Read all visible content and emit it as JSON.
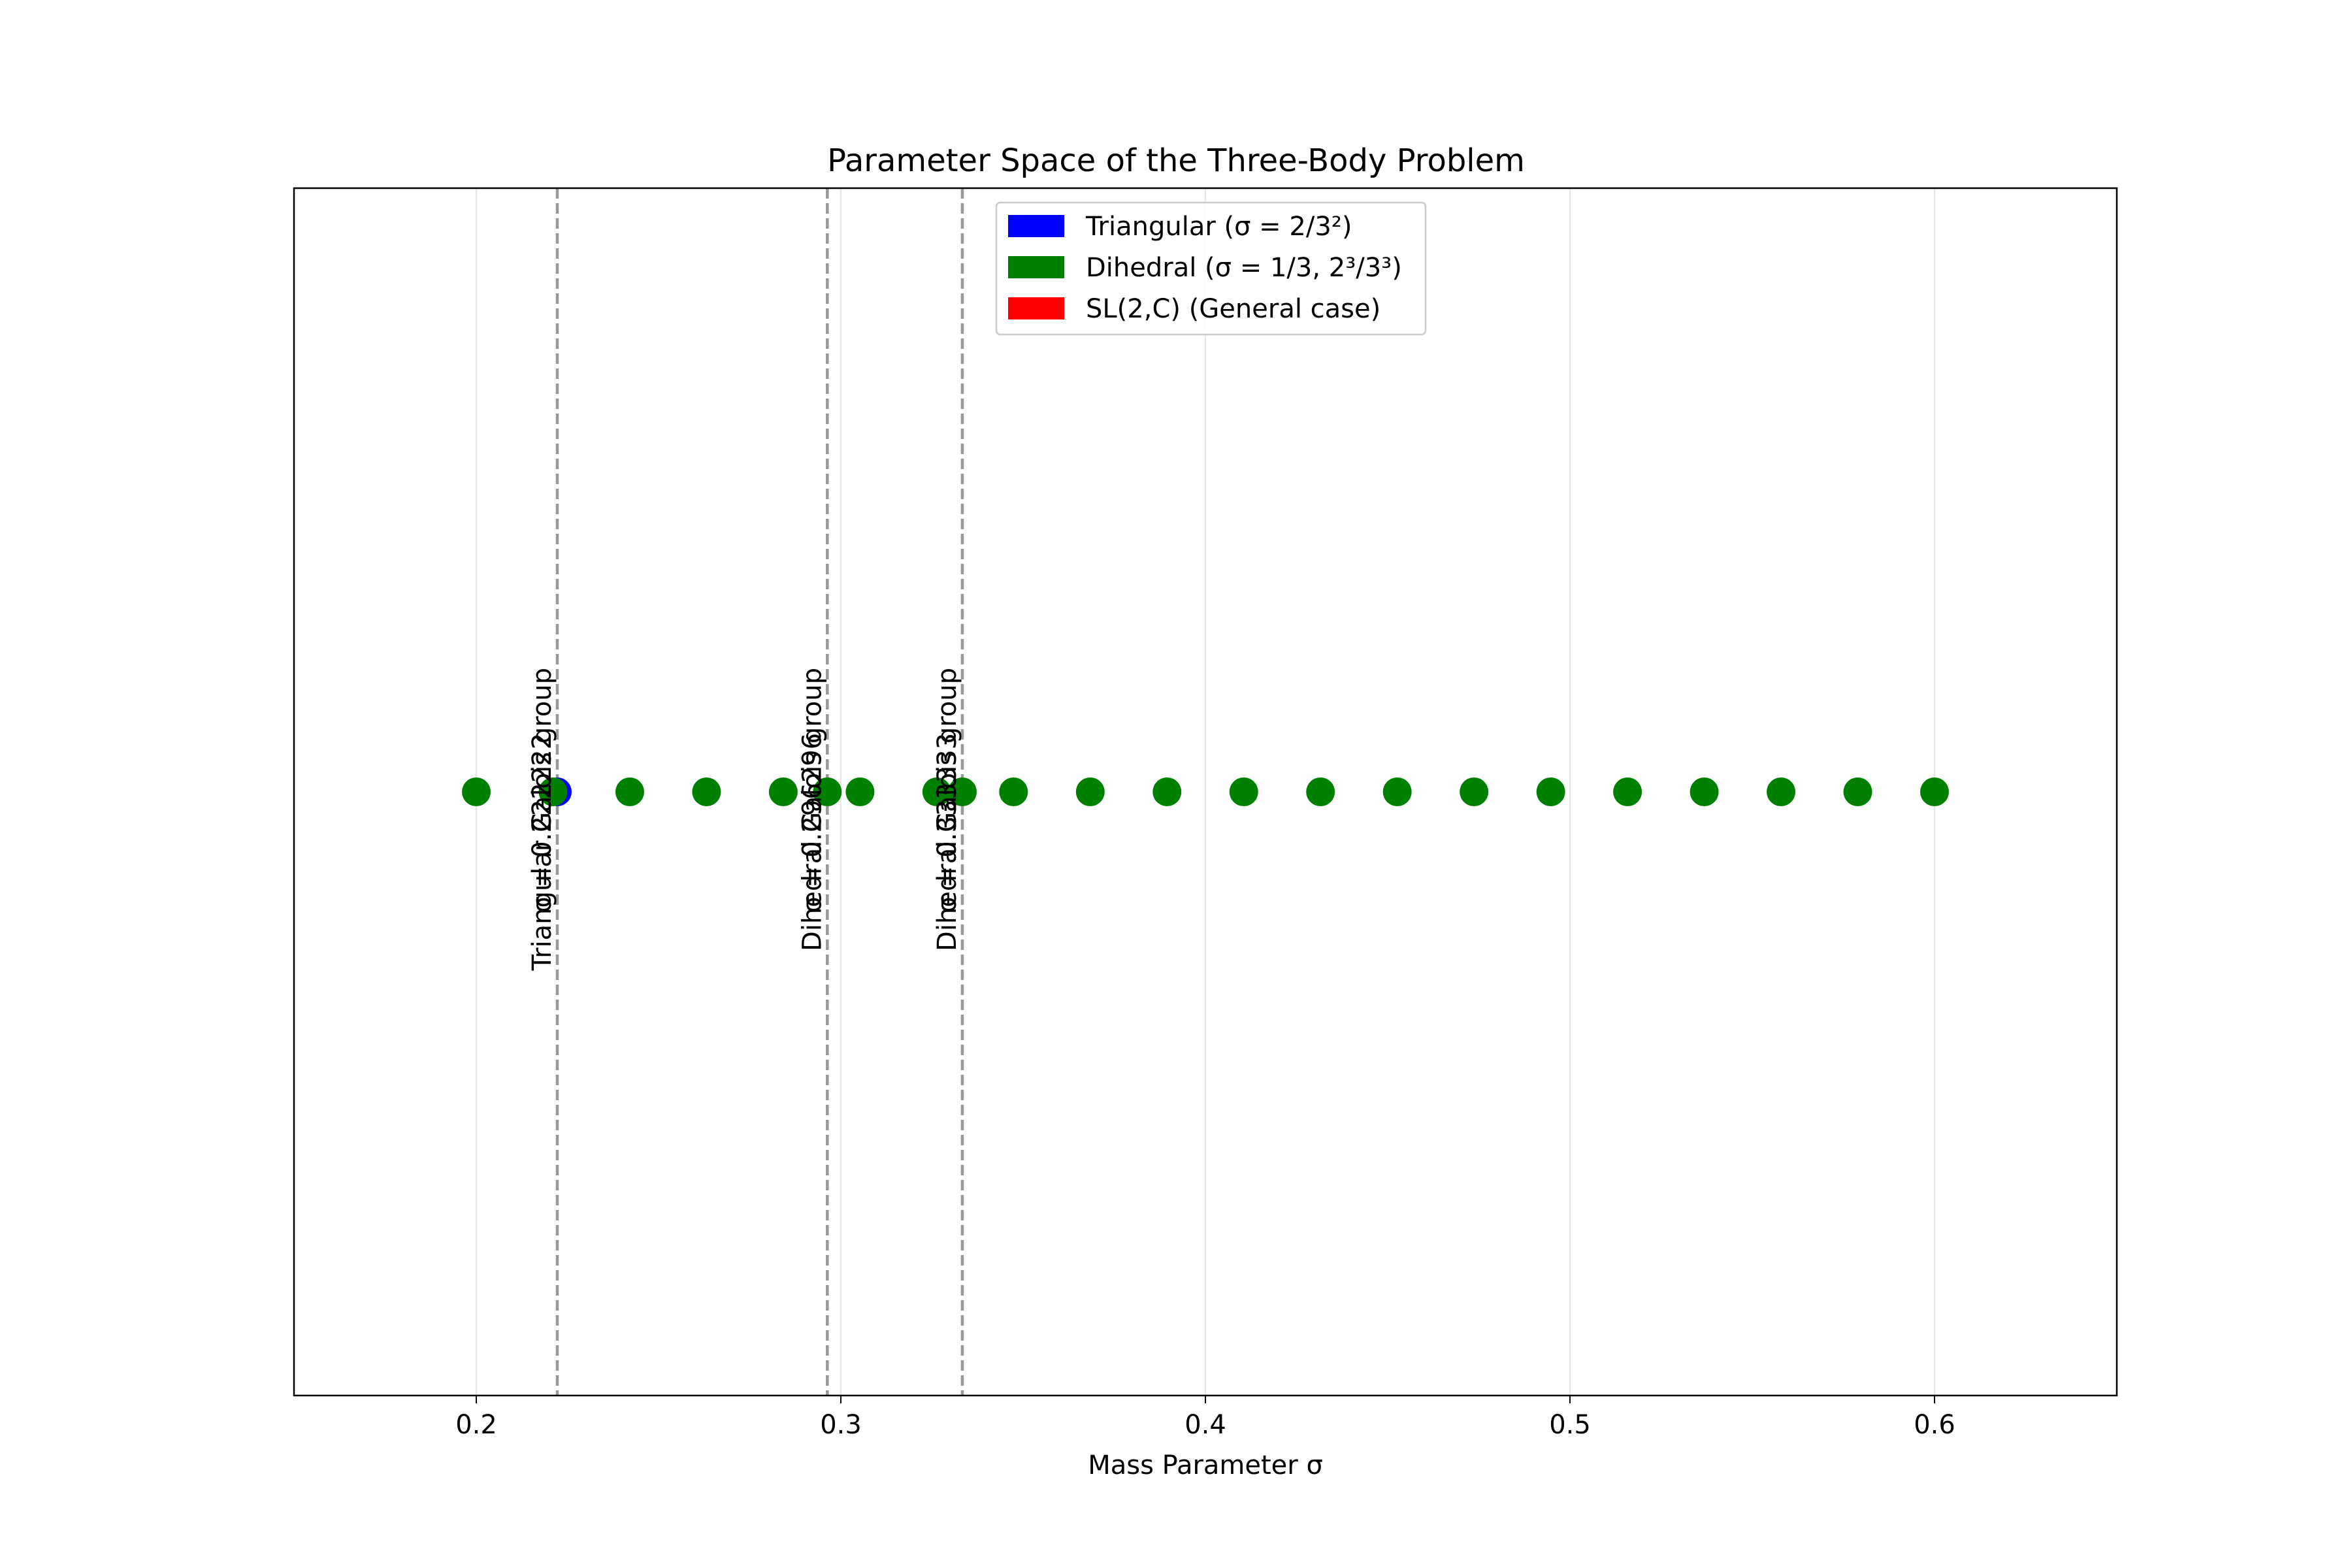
{
  "chart_data": {
    "type": "scatter",
    "title": "Parameter Space of the Three-Body Problem",
    "xlabel": "Mass Parameter σ",
    "ylabel": "",
    "xlim": [
      0.15,
      0.65
    ],
    "ylim": [
      -1,
      1
    ],
    "xticks": [
      0.2,
      0.3,
      0.4,
      0.5,
      0.6
    ],
    "xtick_labels": [
      "0.2",
      "0.3",
      "0.4",
      "0.5",
      "0.6"
    ],
    "grid": "x-axis vertical lines",
    "legend_position": "upper center",
    "legend": [
      {
        "label": "Triangular (σ = 2/3²)",
        "color": "#0000ff"
      },
      {
        "label": "Dihedral (σ = 1/3, 2³/3³)",
        "color": "#008000"
      },
      {
        "label": "SL(2,C) (General case)",
        "color": "#ff0000"
      }
    ],
    "points": [
      {
        "x": 0.2,
        "y": 0,
        "color": "#008000"
      },
      {
        "x": 0.222222,
        "y": 0,
        "color": "#0000ff"
      },
      {
        "x": 0.221053,
        "y": 0,
        "color": "#008000"
      },
      {
        "x": 0.242105,
        "y": 0,
        "color": "#008000"
      },
      {
        "x": 0.263158,
        "y": 0,
        "color": "#008000"
      },
      {
        "x": 0.284211,
        "y": 0,
        "color": "#008000"
      },
      {
        "x": 0.296296,
        "y": 0,
        "color": "#008000"
      },
      {
        "x": 0.305263,
        "y": 0,
        "color": "#008000"
      },
      {
        "x": 0.326316,
        "y": 0,
        "color": "#008000"
      },
      {
        "x": 0.333333,
        "y": 0,
        "color": "#008000"
      },
      {
        "x": 0.347368,
        "y": 0,
        "color": "#008000"
      },
      {
        "x": 0.368421,
        "y": 0,
        "color": "#008000"
      },
      {
        "x": 0.389474,
        "y": 0,
        "color": "#008000"
      },
      {
        "x": 0.410526,
        "y": 0,
        "color": "#008000"
      },
      {
        "x": 0.431579,
        "y": 0,
        "color": "#008000"
      },
      {
        "x": 0.452632,
        "y": 0,
        "color": "#008000"
      },
      {
        "x": 0.473684,
        "y": 0,
        "color": "#008000"
      },
      {
        "x": 0.494737,
        "y": 0,
        "color": "#008000"
      },
      {
        "x": 0.515789,
        "y": 0,
        "color": "#008000"
      },
      {
        "x": 0.536842,
        "y": 0,
        "color": "#008000"
      },
      {
        "x": 0.557895,
        "y": 0,
        "color": "#008000"
      },
      {
        "x": 0.578947,
        "y": 0,
        "color": "#008000"
      },
      {
        "x": 0.6,
        "y": 0,
        "color": "#008000"
      }
    ],
    "vlines": [
      {
        "x": 0.222222,
        "value_label": "σ = 0.222222",
        "group_label": "Triangular Galois group"
      },
      {
        "x": 0.296296,
        "value_label": "σ = 0.296296",
        "group_label": "Dihedral Galois group"
      },
      {
        "x": 0.333333,
        "value_label": "σ = 0.333333",
        "group_label": "Dihedral Galois group"
      }
    ]
  }
}
